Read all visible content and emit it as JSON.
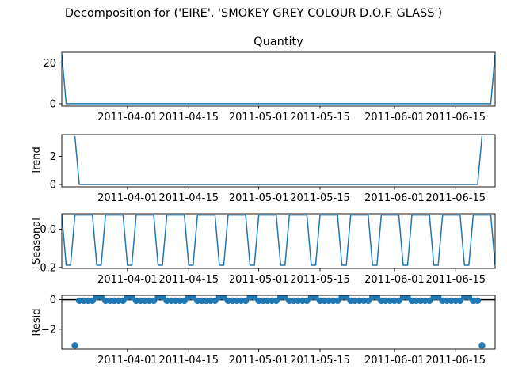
{
  "figure_title": "Decomposition for ('EIRE', 'SMOKEY GREY COLOUR D.O.F. GLASS')",
  "colors": {
    "series": "#1f77b4",
    "zero_line": "#000000",
    "axes": "#000000"
  },
  "chart_data": [
    {
      "id": "observed",
      "type": "line",
      "title": "Quantity",
      "ylabel": "",
      "xlim": [
        "2011-03-17",
        "2011-06-24"
      ],
      "ylim": [
        -1.2,
        25.2
      ],
      "yticks": [
        0,
        20
      ],
      "xticks": [
        "2011-04-01",
        "2011-04-15",
        "2011-05-01",
        "2011-05-15",
        "2011-06-01",
        "2011-06-15"
      ],
      "x_start": "2011-03-17",
      "x_step_days": 1,
      "values": [
        24,
        0,
        0,
        0,
        0,
        0,
        0,
        0,
        0,
        0,
        0,
        0,
        0,
        0,
        0,
        0,
        0,
        0,
        0,
        0,
        0,
        0,
        0,
        0,
        0,
        0,
        0,
        0,
        0,
        0,
        0,
        0,
        0,
        0,
        0,
        0,
        0,
        0,
        0,
        0,
        0,
        0,
        0,
        0,
        0,
        0,
        0,
        0,
        0,
        0,
        0,
        0,
        0,
        0,
        0,
        0,
        0,
        0,
        0,
        0,
        0,
        0,
        0,
        0,
        0,
        0,
        0,
        0,
        0,
        0,
        0,
        0,
        0,
        0,
        0,
        0,
        0,
        0,
        0,
        0,
        0,
        0,
        0,
        0,
        0,
        0,
        0,
        0,
        0,
        0,
        0,
        0,
        0,
        0,
        0,
        0,
        0,
        0,
        0,
        24
      ]
    },
    {
      "id": "trend",
      "type": "line",
      "title": "",
      "ylabel": "Trend",
      "xlim": [
        "2011-03-17",
        "2011-06-24"
      ],
      "ylim": [
        -0.17,
        3.55
      ],
      "yticks": [
        0,
        2
      ],
      "xticks": [
        "2011-04-01",
        "2011-04-15",
        "2011-05-01",
        "2011-05-15",
        "2011-06-01",
        "2011-06-15"
      ],
      "x_start": "2011-03-17",
      "x_step_days": 1,
      "values": [
        null,
        null,
        null,
        3.43,
        0,
        0,
        0,
        0,
        0,
        0,
        0,
        0,
        0,
        0,
        0,
        0,
        0,
        0,
        0,
        0,
        0,
        0,
        0,
        0,
        0,
        0,
        0,
        0,
        0,
        0,
        0,
        0,
        0,
        0,
        0,
        0,
        0,
        0,
        0,
        0,
        0,
        0,
        0,
        0,
        0,
        0,
        0,
        0,
        0,
        0,
        0,
        0,
        0,
        0,
        0,
        0,
        0,
        0,
        0,
        0,
        0,
        0,
        0,
        0,
        0,
        0,
        0,
        0,
        0,
        0,
        0,
        0,
        0,
        0,
        0,
        0,
        0,
        0,
        0,
        0,
        0,
        0,
        0,
        0,
        0,
        0,
        0,
        0,
        0,
        0,
        0,
        0,
        0,
        0,
        0,
        0,
        3.43,
        null,
        null,
        null
      ]
    },
    {
      "id": "seasonal",
      "type": "line",
      "title": "",
      "ylabel": "Seasonal",
      "xlim": [
        "2011-03-17",
        "2011-06-24"
      ],
      "ylim": [
        -0.205,
        0.08
      ],
      "yticks": [
        -0.2,
        0.0
      ],
      "yticklabels": [
        "−0.2",
        "0.0"
      ],
      "xticks": [
        "2011-04-01",
        "2011-04-15",
        "2011-05-01",
        "2011-05-15",
        "2011-06-01",
        "2011-06-15"
      ],
      "x_start": "2011-03-17",
      "x_step_days": 1,
      "period_pattern": [
        0.0735,
        -0.1886,
        -0.1886,
        0.0735,
        0.0735,
        0.0735,
        0.0735
      ],
      "pattern_offset": 0
    },
    {
      "id": "resid",
      "type": "scatter",
      "title": "",
      "ylabel": "Resid",
      "xlim": [
        "2011-03-17",
        "2011-06-24"
      ],
      "ylim": [
        -3.35,
        0.3
      ],
      "yticks": [
        -2,
        0
      ],
      "yticklabels": [
        "−2",
        "0"
      ],
      "xticks": [
        "2011-04-01",
        "2011-04-15",
        "2011-05-01",
        "2011-05-15",
        "2011-06-01",
        "2011-06-15"
      ],
      "x_start": "2011-03-17",
      "x_step_days": 1,
      "zero_line": 0,
      "first_valid": 3,
      "last_valid": 96,
      "outliers": [
        {
          "index": 3,
          "value": -3.1
        },
        {
          "index": 96,
          "value": -3.1
        }
      ],
      "resid_rule": "negative_seasonal"
    }
  ]
}
